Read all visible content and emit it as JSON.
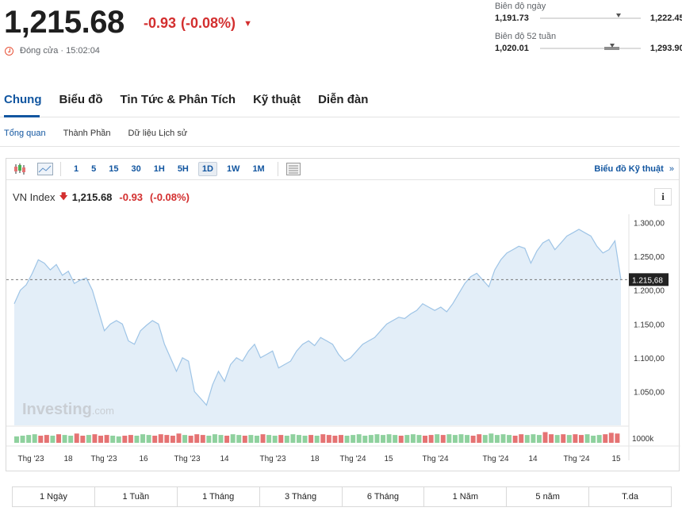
{
  "quote": {
    "price": "1,215.68",
    "change": "-0.93",
    "change_pct": "(-0.08%)",
    "status": "Đóng cửa · 15:02:04"
  },
  "day_range": {
    "label": "Biên độ ngày",
    "low": "1,191.73",
    "high": "1,222.45",
    "position": 0.78
  },
  "year_range": {
    "label": "Biên độ 52 tuần",
    "low": "1,020.01",
    "high": "1,293.90",
    "position": 0.72
  },
  "tabs": [
    "Chung",
    "Biểu đồ",
    "Tin Tức & Phân Tích",
    "Kỹ thuật",
    "Diễn đàn"
  ],
  "subtabs": [
    "Tổng quan",
    "Thành Phần",
    "Dữ liệu Lịch sử"
  ],
  "toolbar": {
    "timeframes": [
      "1",
      "5",
      "15",
      "30",
      "1H",
      "5H",
      "1D",
      "1W",
      "1M"
    ],
    "active_timeframe": "1D",
    "tech_chart_label": "Biểu đồ Kỹ thuật",
    "tech_chart_arrow": "»"
  },
  "legend": {
    "name": "VN Index",
    "value": "1,215.68",
    "change": "-0.93",
    "change_pct": "(-0.08%)"
  },
  "info_icon": "i",
  "watermark": {
    "brand": "Investing",
    "suffix": ".com"
  },
  "colors": {
    "down": "#d32f2f",
    "up_vol": "#8fd19e",
    "down_vol": "#e57373",
    "line": "#9ec4e6",
    "area": "#e3eef8",
    "accent": "#1256a0"
  },
  "chart_data": {
    "type": "area",
    "ylim": [
      1000,
      1310
    ],
    "y_ticks": [
      "1.300,00",
      "1.250,00",
      "1.200,00",
      "1.150,00",
      "1.100,00",
      "1.050,00"
    ],
    "y_tick_values": [
      1300,
      1250,
      1200,
      1150,
      1100,
      1050
    ],
    "last_label": "1.215,68",
    "last_value": 1215.68,
    "volume_label": "1000k",
    "x_ticks": [
      "Thg '23",
      "18",
      "Thg '23",
      "16",
      "Thg '23",
      "14",
      "Thg '23",
      "18",
      "Thg '24",
      "15",
      "Thg '24",
      "Thg '24",
      "14",
      "Thg '24",
      "15"
    ],
    "series": [
      {
        "values": [
          1180,
          1200,
          1208,
          1225,
          1245,
          1240,
          1230,
          1238,
          1222,
          1228,
          1210,
          1215,
          1218,
          1200,
          1170,
          1140,
          1150,
          1155,
          1150,
          1125,
          1120,
          1140,
          1148,
          1155,
          1150,
          1120,
          1100,
          1080,
          1100,
          1095,
          1050,
          1040,
          1030,
          1060,
          1080,
          1065,
          1090,
          1100,
          1095,
          1110,
          1120,
          1100,
          1105,
          1110,
          1085,
          1090,
          1095,
          1110,
          1120,
          1125,
          1118,
          1130,
          1125,
          1120,
          1105,
          1095,
          1100,
          1110,
          1120,
          1125,
          1130,
          1140,
          1150,
          1155,
          1160,
          1158,
          1165,
          1170,
          1180,
          1175,
          1170,
          1175,
          1168,
          1180,
          1195,
          1210,
          1220,
          1225,
          1215,
          1205,
          1230,
          1245,
          1255,
          1260,
          1265,
          1262,
          1240,
          1258,
          1270,
          1275,
          1260,
          1270,
          1280,
          1285,
          1290,
          1285,
          1280,
          1265,
          1255,
          1260,
          1273,
          1215.68
        ]
      }
    ],
    "volume": [
      {
        "v": 0.45,
        "d": 0
      },
      {
        "v": 0.5,
        "d": 0
      },
      {
        "v": 0.55,
        "d": 0
      },
      {
        "v": 0.6,
        "d": 0
      },
      {
        "v": 0.5,
        "d": 1
      },
      {
        "v": 0.55,
        "d": 1
      },
      {
        "v": 0.5,
        "d": 0
      },
      {
        "v": 0.6,
        "d": 1
      },
      {
        "v": 0.55,
        "d": 0
      },
      {
        "v": 0.5,
        "d": 0
      },
      {
        "v": 0.65,
        "d": 1
      },
      {
        "v": 0.5,
        "d": 1
      },
      {
        "v": 0.55,
        "d": 0
      },
      {
        "v": 0.6,
        "d": 1
      },
      {
        "v": 0.5,
        "d": 1
      },
      {
        "v": 0.55,
        "d": 1
      },
      {
        "v": 0.5,
        "d": 0
      },
      {
        "v": 0.45,
        "d": 0
      },
      {
        "v": 0.5,
        "d": 1
      },
      {
        "v": 0.55,
        "d": 1
      },
      {
        "v": 0.5,
        "d": 0
      },
      {
        "v": 0.6,
        "d": 0
      },
      {
        "v": 0.55,
        "d": 0
      },
      {
        "v": 0.5,
        "d": 1
      },
      {
        "v": 0.6,
        "d": 1
      },
      {
        "v": 0.55,
        "d": 1
      },
      {
        "v": 0.5,
        "d": 1
      },
      {
        "v": 0.65,
        "d": 1
      },
      {
        "v": 0.55,
        "d": 0
      },
      {
        "v": 0.5,
        "d": 1
      },
      {
        "v": 0.6,
        "d": 1
      },
      {
        "v": 0.55,
        "d": 1
      },
      {
        "v": 0.5,
        "d": 0
      },
      {
        "v": 0.6,
        "d": 0
      },
      {
        "v": 0.55,
        "d": 0
      },
      {
        "v": 0.5,
        "d": 1
      },
      {
        "v": 0.6,
        "d": 0
      },
      {
        "v": 0.55,
        "d": 0
      },
      {
        "v": 0.5,
        "d": 1
      },
      {
        "v": 0.55,
        "d": 0
      },
      {
        "v": 0.5,
        "d": 0
      },
      {
        "v": 0.6,
        "d": 1
      },
      {
        "v": 0.55,
        "d": 0
      },
      {
        "v": 0.5,
        "d": 0
      },
      {
        "v": 0.55,
        "d": 1
      },
      {
        "v": 0.5,
        "d": 0
      },
      {
        "v": 0.6,
        "d": 0
      },
      {
        "v": 0.55,
        "d": 0
      },
      {
        "v": 0.5,
        "d": 0
      },
      {
        "v": 0.55,
        "d": 1
      },
      {
        "v": 0.5,
        "d": 0
      },
      {
        "v": 0.6,
        "d": 1
      },
      {
        "v": 0.55,
        "d": 1
      },
      {
        "v": 0.5,
        "d": 1
      },
      {
        "v": 0.55,
        "d": 1
      },
      {
        "v": 0.5,
        "d": 0
      },
      {
        "v": 0.55,
        "d": 0
      },
      {
        "v": 0.6,
        "d": 0
      },
      {
        "v": 0.5,
        "d": 0
      },
      {
        "v": 0.55,
        "d": 0
      },
      {
        "v": 0.6,
        "d": 0
      },
      {
        "v": 0.55,
        "d": 0
      },
      {
        "v": 0.6,
        "d": 0
      },
      {
        "v": 0.55,
        "d": 0
      },
      {
        "v": 0.5,
        "d": 1
      },
      {
        "v": 0.55,
        "d": 0
      },
      {
        "v": 0.6,
        "d": 0
      },
      {
        "v": 0.55,
        "d": 0
      },
      {
        "v": 0.5,
        "d": 1
      },
      {
        "v": 0.55,
        "d": 1
      },
      {
        "v": 0.6,
        "d": 0
      },
      {
        "v": 0.55,
        "d": 1
      },
      {
        "v": 0.6,
        "d": 0
      },
      {
        "v": 0.55,
        "d": 0
      },
      {
        "v": 0.6,
        "d": 0
      },
      {
        "v": 0.55,
        "d": 0
      },
      {
        "v": 0.5,
        "d": 1
      },
      {
        "v": 0.6,
        "d": 1
      },
      {
        "v": 0.55,
        "d": 0
      },
      {
        "v": 0.65,
        "d": 0
      },
      {
        "v": 0.55,
        "d": 0
      },
      {
        "v": 0.6,
        "d": 0
      },
      {
        "v": 0.55,
        "d": 0
      },
      {
        "v": 0.5,
        "d": 1
      },
      {
        "v": 0.6,
        "d": 1
      },
      {
        "v": 0.55,
        "d": 0
      },
      {
        "v": 0.6,
        "d": 0
      },
      {
        "v": 0.55,
        "d": 0
      },
      {
        "v": 0.75,
        "d": 1
      },
      {
        "v": 0.6,
        "d": 1
      },
      {
        "v": 0.55,
        "d": 0
      },
      {
        "v": 0.6,
        "d": 1
      },
      {
        "v": 0.55,
        "d": 0
      },
      {
        "v": 0.6,
        "d": 1
      },
      {
        "v": 0.55,
        "d": 1
      },
      {
        "v": 0.6,
        "d": 0
      },
      {
        "v": 0.5,
        "d": 0
      },
      {
        "v": 0.55,
        "d": 0
      },
      {
        "v": 0.6,
        "d": 1
      },
      {
        "v": 0.7,
        "d": 1
      },
      {
        "v": 0.65,
        "d": 1
      }
    ]
  },
  "periods": [
    "1 Ngày",
    "1 Tuần",
    "1 Tháng",
    "3 Tháng",
    "6 Tháng",
    "1 Năm",
    "5 năm",
    "T.da"
  ]
}
